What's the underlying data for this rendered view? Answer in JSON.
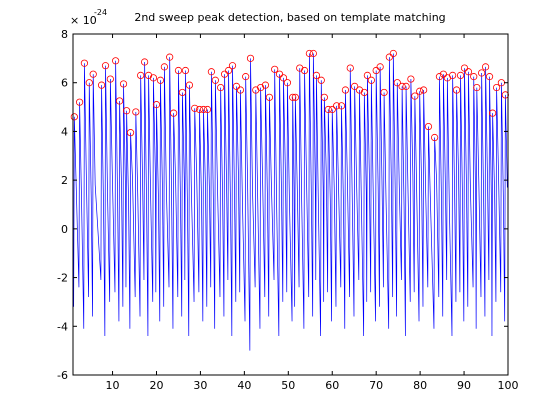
{
  "chart_data": {
    "type": "line",
    "title": "2nd sweep peak detection, based on template matching",
    "y_multiplier": "× 10",
    "y_exponent": "-24",
    "xlim": [
      1,
      100
    ],
    "ylim": [
      -6,
      8
    ],
    "xticks": [
      10,
      20,
      30,
      40,
      50,
      60,
      70,
      80,
      90,
      100
    ],
    "yticks": [
      -6,
      -4,
      -2,
      0,
      2,
      4,
      6,
      8
    ],
    "series": [
      {
        "type": "line",
        "color": "#0000ff",
        "x": [
          1.15,
          1.3,
          1.75,
          2.35,
          2.5,
          2.95,
          3.45,
          3.6,
          4.05,
          4.55,
          4.7,
          5.15,
          5.45,
          5.6,
          6.05,
          7.35,
          7.5,
          7.95,
          8.25,
          8.4,
          8.85,
          9.35,
          9.5,
          9.95,
          10.55,
          10.7,
          11.15,
          11.45,
          11.6,
          12.05,
          12.35,
          12.5,
          12.95,
          13.05,
          13.2,
          13.65,
          13.95,
          14.1,
          14.55,
          15.15,
          15.3,
          15.75,
          16.25,
          16.4,
          16.85,
          17.15,
          17.3,
          17.75,
          18.05,
          18.2,
          18.65,
          19.15,
          19.3,
          19.75,
          19.85,
          20,
          20.45,
          20.75,
          20.9,
          21.35,
          21.65,
          21.8,
          22.25,
          22.85,
          23,
          23.45,
          23.75,
          23.9,
          24.35,
          24.85,
          25,
          25.45,
          25.75,
          25.9,
          26.35,
          26.45,
          26.6,
          27.05,
          27.35,
          27.5,
          27.95,
          28.55,
          28.7,
          29.15,
          29.65,
          29.8,
          30.25,
          30.55,
          30.7,
          31.15,
          31.45,
          31.6,
          32.05,
          32.35,
          32.5,
          32.95,
          33.25,
          33.4,
          33.85,
          34.45,
          34.6,
          35.05,
          35.35,
          35.5,
          35.95,
          36.25,
          36.4,
          36.85,
          37.15,
          37.3,
          37.75,
          38.05,
          38.2,
          38.65,
          38.95,
          39.1,
          39.55,
          40.15,
          40.3,
          40.75,
          41.25,
          41.4,
          41.85,
          42.45,
          42.6,
          43.05,
          43.55,
          43.7,
          44.15,
          44.65,
          44.8,
          45.25,
          45.55,
          45.7,
          46.15,
          46.75,
          46.9,
          47.35,
          47.85,
          48,
          48.45,
          48.75,
          48.9,
          49.35,
          49.65,
          49.8,
          50.25,
          50.85,
          51,
          51.3,
          51.45,
          51.6,
          52.05,
          52.45,
          52.6,
          53.05,
          53.55,
          53.7,
          54.15,
          54.65,
          54.8,
          55.25,
          55.55,
          55.7,
          56.15,
          56.25,
          56.4,
          56.85,
          57.35,
          57.5,
          57.95,
          58.05,
          58.2,
          58.65,
          58.95,
          59.1,
          59.55,
          59.85,
          60,
          60.45,
          60.85,
          61,
          61.45,
          61.95,
          62.1,
          62.55,
          62.85,
          63,
          63.45,
          63.95,
          64.1,
          64.55,
          64.95,
          65.1,
          65.55,
          66.05,
          66.2,
          66.65,
          67.15,
          67.3,
          67.75,
          67.85,
          68,
          68.45,
          68.75,
          68.9,
          69.35,
          69.85,
          70,
          70.45,
          70.75,
          70.9,
          71.35,
          71.65,
          71.8,
          72.25,
          72.85,
          73,
          73.45,
          73.75,
          73.9,
          74.35,
          74.65,
          74.8,
          75.25,
          75.75,
          75.9,
          76.35,
          76.65,
          76.8,
          77.25,
          77.75,
          77.9,
          78.35,
          78.65,
          78.8,
          79.25,
          79.75,
          79.9,
          80.35,
          80.65,
          80.8,
          81.25,
          81.75,
          81.9,
          82.35,
          83.15,
          83.3,
          83.75,
          84.25,
          84.4,
          84.85,
          85.15,
          85.3,
          85.75,
          86.05,
          86.2,
          86.65,
          87.25,
          87.4,
          87.85,
          88.15,
          88.3,
          88.75,
          89.05,
          89.2,
          89.65,
          89.95,
          90.1,
          90.55,
          90.85,
          91,
          91.45,
          92.05,
          92.2,
          92.65,
          92.75,
          92.9,
          93.35,
          93.85,
          94,
          94.45,
          94.75,
          94.9,
          95.35,
          95.65,
          95.8,
          96.25,
          96.35,
          96.5,
          96.95,
          97.25,
          97.4,
          97.85,
          98.35,
          98.5,
          98.95,
          99.25,
          99.4,
          99.85
        ],
        "values": [
          -3.2,
          4.6,
          1.6,
          -2.4,
          5.2,
          1.1,
          -4.1,
          6.8,
          2.0,
          -2.8,
          6.0,
          1.3,
          -3.6,
          6.35,
          1.8,
          -2.1,
          5.9,
          0.9,
          -4.4,
          6.7,
          1.5,
          -3.0,
          6.15,
          2.2,
          -2.6,
          6.9,
          1.2,
          -3.8,
          5.25,
          1.7,
          -3.2,
          5.95,
          1.6,
          -2.4,
          4.85,
          1.1,
          -4.1,
          3.95,
          2.0,
          -2.8,
          4.8,
          1.3,
          -3.6,
          6.3,
          1.8,
          -2.1,
          6.85,
          0.9,
          -4.4,
          6.3,
          1.5,
          -3.0,
          6.2,
          2.2,
          -2.6,
          5.1,
          1.2,
          -3.8,
          6.1,
          1.7,
          -3.2,
          6.65,
          1.6,
          -2.4,
          7.05,
          1.1,
          -4.1,
          4.75,
          2.0,
          -2.8,
          6.5,
          1.3,
          -3.6,
          5.6,
          1.8,
          -2.1,
          6.5,
          0.9,
          -4.4,
          5.9,
          1.5,
          -3.0,
          4.95,
          2.2,
          -2.6,
          4.9,
          1.2,
          -3.8,
          4.9,
          1.7,
          -3.2,
          4.9,
          1.6,
          -2.4,
          6.45,
          1.1,
          -4.1,
          6.1,
          2.0,
          -2.8,
          5.8,
          1.3,
          -3.6,
          6.35,
          1.8,
          -2.1,
          6.5,
          0.9,
          -4.4,
          6.7,
          1.5,
          -3.0,
          5.85,
          2.2,
          -2.6,
          5.7,
          1.2,
          -3.8,
          6.25,
          1.7,
          -5.0,
          7.0,
          1.6,
          -2.4,
          5.7,
          1.1,
          -4.1,
          5.8,
          2.0,
          -2.8,
          5.9,
          1.3,
          -3.6,
          5.4,
          1.8,
          -2.1,
          6.55,
          0.9,
          -4.4,
          6.35,
          1.5,
          -3.0,
          6.2,
          2.2,
          -2.6,
          6.0,
          1.2,
          -3.8,
          5.4,
          1.7,
          -3.2,
          5.4,
          1.6,
          -2.4,
          6.6,
          1.1,
          -4.1,
          6.5,
          2.0,
          -2.8,
          7.2,
          1.3,
          -3.6,
          7.2,
          1.8,
          -2.1,
          6.3,
          0.9,
          -4.4,
          6.1,
          1.5,
          -3.0,
          5.4,
          2.2,
          -2.6,
          4.9,
          1.2,
          -3.8,
          4.9,
          1.7,
          -3.2,
          5.05,
          1.6,
          -2.4,
          5.05,
          1.1,
          -4.1,
          5.7,
          2.0,
          -2.8,
          6.6,
          1.3,
          -3.6,
          5.85,
          1.8,
          -2.1,
          5.7,
          0.9,
          -4.4,
          5.6,
          1.5,
          -3.0,
          6.3,
          2.2,
          -2.6,
          6.1,
          1.2,
          -3.8,
          6.5,
          1.7,
          -3.2,
          6.65,
          1.6,
          -2.4,
          5.6,
          1.1,
          -4.1,
          7.05,
          2.0,
          -2.8,
          7.2,
          1.3,
          -3.6,
          6.0,
          1.8,
          -2.1,
          5.85,
          0.9,
          -4.4,
          5.85,
          1.5,
          -3.0,
          6.15,
          2.2,
          -2.6,
          5.45,
          1.2,
          -3.8,
          5.65,
          1.7,
          -3.2,
          5.7,
          1.6,
          -2.4,
          4.2,
          1.1,
          -4.1,
          3.75,
          2.0,
          -2.8,
          6.25,
          1.3,
          -3.6,
          6.35,
          1.8,
          -2.1,
          6.2,
          0.9,
          -4.4,
          6.3,
          1.5,
          -3.0,
          5.7,
          2.2,
          -2.6,
          6.3,
          1.2,
          -3.8,
          6.6,
          1.7,
          -3.2,
          6.45,
          1.6,
          -2.4,
          6.25,
          1.1,
          -4.1,
          5.8,
          2.0,
          -2.8,
          6.4,
          1.3,
          -3.6,
          6.65,
          1.8,
          -2.1,
          6.25,
          0.9,
          -4.4,
          4.75,
          1.5,
          -3.0,
          5.8,
          2.2,
          -2.6,
          6.0,
          1.2,
          -3.8,
          5.5,
          1.7
        ]
      },
      {
        "type": "scatter",
        "color": "#ff0000",
        "marker": "circle",
        "x": [
          1.3,
          2.5,
          3.6,
          4.7,
          5.6,
          7.5,
          8.4,
          9.5,
          10.7,
          11.6,
          12.5,
          13.2,
          14.1,
          15.3,
          16.4,
          17.3,
          18.2,
          19.3,
          20,
          20.9,
          21.8,
          23,
          23.9,
          25,
          25.9,
          26.6,
          27.5,
          28.7,
          29.8,
          30.7,
          31.6,
          32.5,
          33.4,
          34.6,
          35.5,
          36.4,
          37.3,
          38.2,
          39.1,
          40.3,
          41.4,
          42.6,
          43.7,
          44.8,
          45.7,
          46.9,
          48,
          48.9,
          49.8,
          51,
          51.6,
          52.6,
          53.7,
          54.8,
          55.7,
          56.4,
          57.5,
          58.2,
          59.1,
          60,
          61,
          62.1,
          63,
          64.1,
          65.1,
          66.2,
          67.3,
          68,
          68.9,
          70,
          70.9,
          71.8,
          73,
          73.9,
          74.8,
          75.9,
          76.8,
          77.9,
          78.8,
          79.9,
          80.8,
          81.9,
          83.3,
          84.4,
          85.3,
          86.2,
          87.4,
          88.3,
          89.2,
          90.1,
          91,
          92.2,
          92.9,
          94,
          94.9,
          95.8,
          96.5,
          97.4,
          98.5,
          99.4
        ],
        "values": [
          4.6,
          5.2,
          6.8,
          6.0,
          6.35,
          5.9,
          6.7,
          6.15,
          6.9,
          5.25,
          5.95,
          4.85,
          3.95,
          4.8,
          6.3,
          6.85,
          6.3,
          6.2,
          5.1,
          6.1,
          6.65,
          7.05,
          4.75,
          6.5,
          5.6,
          6.5,
          5.9,
          4.95,
          4.9,
          4.9,
          4.9,
          6.45,
          6.1,
          5.8,
          6.35,
          6.5,
          6.7,
          5.85,
          5.7,
          6.25,
          7.0,
          5.7,
          5.8,
          5.9,
          5.4,
          6.55,
          6.35,
          6.2,
          6.0,
          5.4,
          5.4,
          6.6,
          6.5,
          7.2,
          7.2,
          6.3,
          6.1,
          5.4,
          4.9,
          4.9,
          5.05,
          5.05,
          5.7,
          6.6,
          5.85,
          5.7,
          5.6,
          6.3,
          6.1,
          6.5,
          6.65,
          5.6,
          7.05,
          7.2,
          6.0,
          5.85,
          5.85,
          6.15,
          5.45,
          5.65,
          5.7,
          4.2,
          3.75,
          6.25,
          6.35,
          6.2,
          6.3,
          5.7,
          6.3,
          6.6,
          6.45,
          6.25,
          5.8,
          6.4,
          6.65,
          6.25,
          4.75,
          5.8,
          6.0,
          5.5
        ]
      }
    ]
  }
}
